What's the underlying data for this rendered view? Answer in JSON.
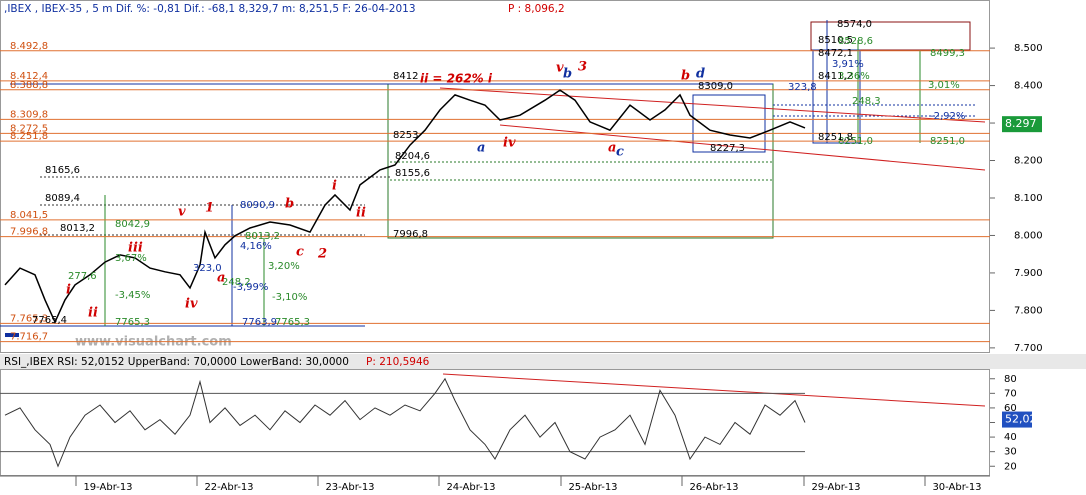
{
  "chart_data": [
    {
      "type": "line",
      "title": ",IBEX , IBEX-35 , 5 m Dif. %: -0,81 Dif.: -68,1 8,329,7 m: 8,251,5 F: 26-04-2013",
      "title_price": "P : 8,096,2",
      "watermark": "www.visualchart.com",
      "color": "#000000",
      "x": [
        5,
        20,
        35,
        45,
        55,
        65,
        75,
        90,
        105,
        120,
        135,
        150,
        165,
        180,
        190,
        200,
        205,
        215,
        225,
        235,
        250,
        270,
        290,
        310,
        325,
        335,
        350,
        360,
        380,
        395,
        410,
        425,
        440,
        455,
        470,
        485,
        500,
        520,
        545,
        560,
        575,
        590,
        610,
        630,
        650,
        665,
        680,
        690,
        710,
        730,
        750,
        770,
        790,
        805
      ],
      "values": [
        7868,
        7913,
        7895,
        7828,
        7769,
        7828,
        7868,
        7895,
        7929,
        7948,
        7940,
        7913,
        7903,
        7895,
        7860,
        7921,
        8009,
        7940,
        7975,
        7999,
        8020,
        8036,
        8028,
        8009,
        8081,
        8108,
        8068,
        8135,
        8175,
        8188,
        8241,
        8281,
        8335,
        8375,
        8361,
        8348,
        8308,
        8321,
        8361,
        8388,
        8361,
        8303,
        8281,
        8348,
        8308,
        8335,
        8375,
        8321,
        8281,
        8268,
        8260,
        8281,
        8303,
        8287
      ],
      "xlim": [
        0,
        990
      ],
      "ylim": [
        7689,
        8615
      ],
      "yticks": [
        {
          "value": 7700,
          "label": "7.700"
        },
        {
          "value": 7800,
          "label": "7.800"
        },
        {
          "value": 7900,
          "label": "7.900"
        },
        {
          "value": 8000,
          "label": "8.000"
        },
        {
          "value": 8100,
          "label": "8.100"
        },
        {
          "value": 8200,
          "label": "8.200"
        },
        {
          "value": 8300,
          "label": "8.300"
        },
        {
          "value": 8400,
          "label": "8.400"
        },
        {
          "value": 8500,
          "label": "8.500"
        }
      ],
      "last": {
        "value": 8297,
        "label": "8.297"
      },
      "levels": [
        {
          "value": 8492.8,
          "label": "8.492,8"
        },
        {
          "value": 8412.4,
          "label": "8.412,4"
        },
        {
          "value": 8388.8,
          "label": "8.388,8"
        },
        {
          "value": 8309.8,
          "label": "8.309,8"
        },
        {
          "value": 8272.5,
          "label": "8.272,5"
        },
        {
          "value": 8251.8,
          "label": "8.251,8"
        },
        {
          "value": 8041.5,
          "label": "8.041,5"
        },
        {
          "value": 7996.8,
          "label": "7.996,8"
        },
        {
          "value": 7765.3,
          "label": "7.765,3"
        },
        {
          "value": 7716.7,
          "label": "7.716,7"
        }
      ],
      "annotations": [
        "8165,6",
        "8089,4",
        "8013,2",
        "8042,9",
        "3,67%",
        "277,6",
        "-3,45%",
        "7765,3",
        "7765,4",
        "323,0",
        "248,2",
        "-3,99%",
        "8090,9",
        "8013,2",
        "4,16%",
        "3,20%",
        "-3,10%",
        "7763,9",
        "7765,3",
        "8412",
        "ii = 262% i",
        "8253",
        "8204,6",
        "8155,6",
        "7996,8",
        "8309,0",
        "323,8",
        "248,3",
        "-2,92%",
        "8251,0",
        "8251,0",
        "8227,3",
        "8574,0",
        "8510,5",
        "8528,6",
        "8472,1",
        "8499,3",
        "3,91%",
        "8411,2",
        "3,36%",
        "3,01%",
        "8251,8"
      ],
      "wave_labels": [
        "i",
        "ii",
        "iii",
        "iv",
        "v",
        "1",
        "a",
        "b",
        "c",
        "2",
        "i",
        "ii",
        "v",
        "3",
        "iv",
        "a",
        "b",
        "b",
        "a",
        "c",
        "d"
      ]
    },
    {
      "type": "line",
      "title": "RSI_,IBEX RSI: 52,0152 UpperBand: 70,0000 LowerBand: 30,0000",
      "title_price": "P: 210,5946",
      "color": "#333333",
      "x": [
        5,
        20,
        35,
        50,
        58,
        70,
        85,
        100,
        115,
        130,
        145,
        160,
        175,
        190,
        200,
        210,
        225,
        240,
        255,
        270,
        285,
        300,
        315,
        330,
        345,
        360,
        375,
        390,
        405,
        420,
        435,
        445,
        455,
        470,
        485,
        495,
        510,
        525,
        540,
        555,
        570,
        585,
        600,
        615,
        630,
        645,
        660,
        675,
        690,
        705,
        720,
        735,
        750,
        765,
        780,
        795,
        805
      ],
      "values": [
        55,
        60,
        45,
        35,
        20,
        40,
        55,
        62,
        50,
        58,
        45,
        52,
        42,
        55,
        78,
        50,
        60,
        48,
        55,
        45,
        58,
        50,
        62,
        55,
        65,
        52,
        60,
        55,
        62,
        58,
        70,
        80,
        65,
        45,
        35,
        25,
        45,
        55,
        40,
        50,
        30,
        25,
        40,
        45,
        55,
        35,
        72,
        55,
        25,
        40,
        35,
        50,
        42,
        62,
        55,
        65,
        50
      ],
      "xlim": [
        0,
        990
      ],
      "ylim": [
        14,
        86
      ],
      "yticks": [
        20,
        30,
        40,
        50,
        60,
        70,
        80
      ],
      "upper_band": 70,
      "lower_band": 30,
      "last": {
        "value": 52.02,
        "label": "52,02"
      },
      "xticks": [
        {
          "value": 108,
          "label": "19-Abr-13"
        },
        {
          "value": 229,
          "label": "22-Abr-13"
        },
        {
          "value": 350,
          "label": "23-Abr-13"
        },
        {
          "value": 471,
          "label": "24-Abr-13"
        },
        {
          "value": 593,
          "label": "25-Abr-13"
        },
        {
          "value": 714,
          "label": "26-Abr-13"
        },
        {
          "value": 836,
          "label": "29-Abr-13"
        },
        {
          "value": 957,
          "label": "30-Abr-13"
        }
      ]
    }
  ]
}
